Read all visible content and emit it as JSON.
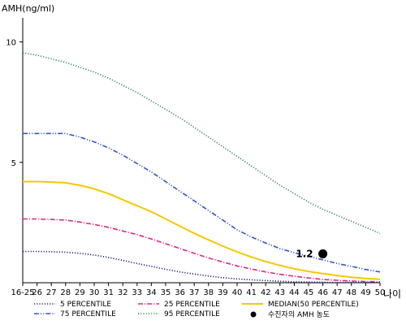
{
  "chart_data": {
    "type": "line",
    "title": "",
    "ylabel": "AMH(ng/ml)",
    "xlabel": "나이",
    "categories": [
      "16-25",
      "26",
      "27",
      "28",
      "29",
      "30",
      "31",
      "32",
      "33",
      "34",
      "35",
      "36",
      "37",
      "38",
      "39",
      "40",
      "41",
      "42",
      "43",
      "44",
      "45",
      "46",
      "47",
      "48",
      "49",
      "50"
    ],
    "ylim": [
      0,
      11
    ],
    "yticks": [
      5,
      10
    ],
    "grid": false,
    "legend_position": "bottom",
    "series": [
      {
        "name": "95 PERCENTILE",
        "color": "#2e8b57",
        "dash": "dotted",
        "values": [
          9.55,
          9.45,
          9.3,
          9.15,
          8.95,
          8.75,
          8.5,
          8.2,
          7.9,
          7.55,
          7.2,
          6.85,
          6.45,
          6.05,
          5.65,
          5.25,
          4.85,
          4.45,
          4.05,
          3.7,
          3.35,
          3.05,
          2.8,
          2.55,
          2.3,
          2.05
        ]
      },
      {
        "name": "75 PERCENTILE",
        "color": "#3355cc",
        "dash": "dashdotdot",
        "values": [
          6.2,
          6.2,
          6.2,
          6.2,
          6.05,
          5.85,
          5.6,
          5.3,
          4.95,
          4.6,
          4.2,
          3.8,
          3.4,
          3.0,
          2.6,
          2.2,
          1.9,
          1.65,
          1.42,
          1.25,
          1.1,
          0.95,
          0.8,
          0.68,
          0.55,
          0.45
        ]
      },
      {
        "name": "MEDIAN(50 PERCENTILE)",
        "color": "#f5c800",
        "dash": "solid",
        "values": [
          4.2,
          4.2,
          4.18,
          4.15,
          4.05,
          3.9,
          3.7,
          3.45,
          3.2,
          2.95,
          2.65,
          2.35,
          2.05,
          1.78,
          1.52,
          1.28,
          1.07,
          0.88,
          0.72,
          0.58,
          0.47,
          0.38,
          0.3,
          0.23,
          0.18,
          0.15
        ]
      },
      {
        "name": "25 PERCENTILE",
        "color": "#e0258a",
        "dash": "dashdot",
        "values": [
          2.65,
          2.65,
          2.63,
          2.6,
          2.52,
          2.42,
          2.3,
          2.15,
          2.0,
          1.82,
          1.62,
          1.42,
          1.22,
          1.03,
          0.86,
          0.7,
          0.57,
          0.45,
          0.35,
          0.27,
          0.2,
          0.14,
          0.1,
          0.07,
          0.05,
          0.04
        ]
      },
      {
        "name": "5 PERCENTILE",
        "color": "#1a237e",
        "dash": "dotted",
        "values": [
          1.3,
          1.3,
          1.29,
          1.27,
          1.22,
          1.15,
          1.05,
          0.93,
          0.8,
          0.68,
          0.56,
          0.45,
          0.36,
          0.28,
          0.21,
          0.16,
          0.12,
          0.09,
          0.06,
          0.04,
          0.03,
          0.02,
          0.01,
          0.01,
          0.01,
          0.01
        ]
      }
    ],
    "marker": {
      "name": "수진자의 AMH 농도",
      "x": "46",
      "y": 1.2,
      "label": "1.2",
      "color": "#000000"
    }
  }
}
